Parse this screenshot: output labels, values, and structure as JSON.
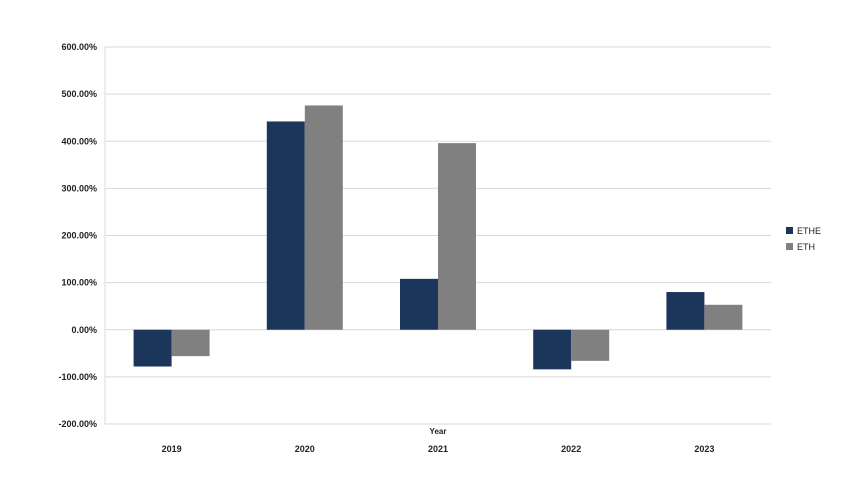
{
  "chart_data": {
    "type": "bar",
    "categories": [
      "2019",
      "2020",
      "2021",
      "2022",
      "2023"
    ],
    "series": [
      {
        "name": "ETHE",
        "color": "#1b355b",
        "values": [
          -78,
          442,
          108,
          -84,
          80
        ]
      },
      {
        "name": "ETH",
        "color": "#808080",
        "values": [
          -56,
          476,
          396,
          -66,
          53
        ]
      }
    ],
    "xlabel": "Year",
    "ylabel": "",
    "ylim": [
      -200,
      600
    ],
    "yticks": [
      -200,
      -100,
      0,
      100,
      200,
      300,
      400,
      500,
      600
    ],
    "ytick_labels": [
      "-200.00%",
      "-100.00%",
      "0.00%",
      "100.00%",
      "200.00%",
      "300.00%",
      "400.00%",
      "500.00%",
      "600.00%"
    ],
    "grid": true,
    "legend_position": "right"
  }
}
